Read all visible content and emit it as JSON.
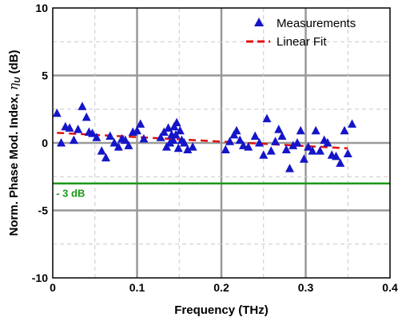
{
  "chart_data": {
    "type": "scatter",
    "xlabel": "Frequency (THz)",
    "ylabel_prefix": "Norm. Phase Mod. Index, ",
    "ylabel_symbol": "η",
    "ylabel_subscript": "U",
    "ylabel_suffix": " (dB)",
    "xlim": [
      0,
      0.4
    ],
    "ylim": [
      -10,
      10
    ],
    "x_ticks": [
      0,
      0.1,
      0.2,
      0.3,
      0.4
    ],
    "x_tick_labels": [
      "0",
      "0.1",
      "0.2",
      "0.3",
      "0.4"
    ],
    "y_ticks": [
      -10,
      -5,
      0,
      5,
      10
    ],
    "y_tick_labels": [
      "-10",
      "-5",
      "0",
      "5",
      "10"
    ],
    "grid": true,
    "legend_position": "top-right",
    "series": [
      {
        "name": "Measurements",
        "kind": "scatter",
        "marker": "triangle",
        "color": "#1515c8",
        "points": [
          [
            0.005,
            2.2
          ],
          [
            0.01,
            0.0
          ],
          [
            0.015,
            1.2
          ],
          [
            0.02,
            1.1
          ],
          [
            0.025,
            0.2
          ],
          [
            0.03,
            1.0
          ],
          [
            0.035,
            2.7
          ],
          [
            0.04,
            1.9
          ],
          [
            0.043,
            0.8
          ],
          [
            0.047,
            0.7
          ],
          [
            0.052,
            0.4
          ],
          [
            0.058,
            -0.6
          ],
          [
            0.063,
            -1.1
          ],
          [
            0.068,
            0.5
          ],
          [
            0.073,
            0.0
          ],
          [
            0.078,
            -0.3
          ],
          [
            0.082,
            0.3
          ],
          [
            0.086,
            0.2
          ],
          [
            0.09,
            -0.2
          ],
          [
            0.095,
            0.8
          ],
          [
            0.1,
            0.9
          ],
          [
            0.104,
            1.4
          ],
          [
            0.108,
            0.3
          ],
          [
            0.128,
            0.4
          ],
          [
            0.132,
            0.8
          ],
          [
            0.135,
            -0.3
          ],
          [
            0.137,
            1.1
          ],
          [
            0.139,
            0.0
          ],
          [
            0.141,
            0.6
          ],
          [
            0.143,
            0.2
          ],
          [
            0.144,
            1.2
          ],
          [
            0.146,
            0.6
          ],
          [
            0.147,
            1.5
          ],
          [
            0.149,
            -0.4
          ],
          [
            0.151,
            0.9
          ],
          [
            0.153,
            0.2
          ],
          [
            0.156,
            0.0
          ],
          [
            0.16,
            -0.5
          ],
          [
            0.166,
            -0.3
          ],
          [
            0.205,
            -0.5
          ],
          [
            0.21,
            0.1
          ],
          [
            0.215,
            0.6
          ],
          [
            0.218,
            0.9
          ],
          [
            0.222,
            0.2
          ],
          [
            0.226,
            -0.2
          ],
          [
            0.232,
            -0.3
          ],
          [
            0.24,
            0.5
          ],
          [
            0.245,
            0.0
          ],
          [
            0.25,
            -0.9
          ],
          [
            0.254,
            1.8
          ],
          [
            0.259,
            -0.6
          ],
          [
            0.264,
            0.1
          ],
          [
            0.268,
            1.0
          ],
          [
            0.272,
            0.5
          ],
          [
            0.277,
            -0.5
          ],
          [
            0.281,
            -1.9
          ],
          [
            0.285,
            -0.2
          ],
          [
            0.29,
            0.0
          ],
          [
            0.294,
            0.9
          ],
          [
            0.298,
            -1.2
          ],
          [
            0.303,
            -0.3
          ],
          [
            0.308,
            -0.6
          ],
          [
            0.312,
            0.9
          ],
          [
            0.317,
            -0.6
          ],
          [
            0.322,
            0.2
          ],
          [
            0.326,
            0.0
          ],
          [
            0.331,
            -0.9
          ],
          [
            0.336,
            -1.0
          ],
          [
            0.341,
            -1.5
          ],
          [
            0.346,
            0.9
          ],
          [
            0.35,
            -0.8
          ],
          [
            0.355,
            1.4
          ]
        ]
      },
      {
        "name": "Linear Fit",
        "kind": "line",
        "style": "dashed",
        "color": "#e01010",
        "points": [
          [
            0.005,
            0.75
          ],
          [
            0.35,
            -0.4
          ]
        ]
      }
    ],
    "annotations": [
      {
        "text": "- 3 dB",
        "y": -3,
        "color": "#1a9a1a",
        "kind": "hline",
        "x_text": 0.004
      }
    ]
  }
}
